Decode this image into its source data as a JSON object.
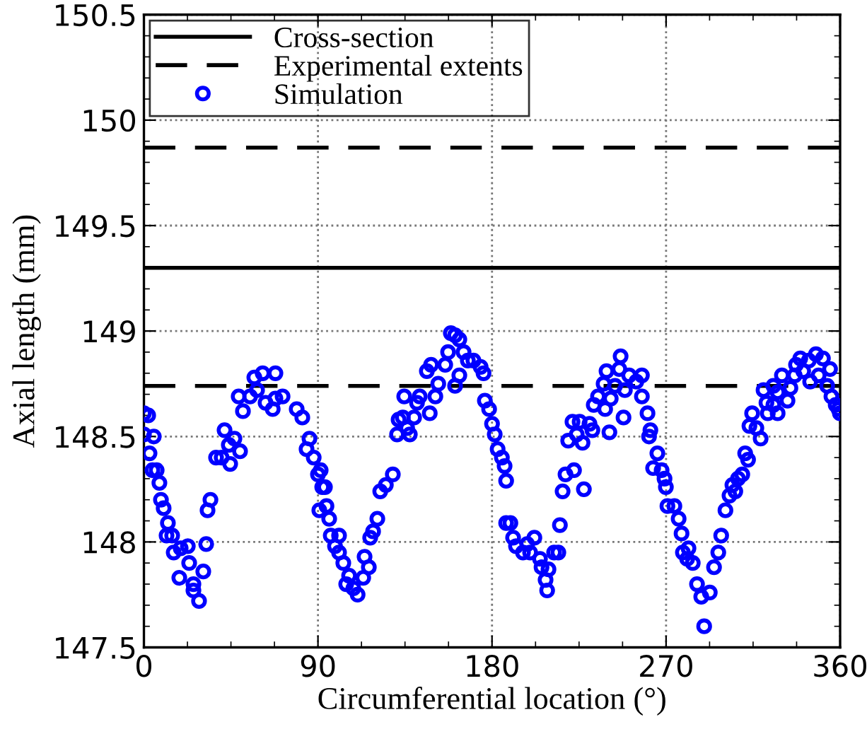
{
  "chart_data": {
    "type": "scatter",
    "xlabel": "Circumferential location (°)",
    "ylabel": "Axial length (mm)",
    "xlim": [
      0,
      360
    ],
    "xticks": [
      0,
      90,
      180,
      270,
      360
    ],
    "ylim": [
      147.5,
      150.5
    ],
    "yticks": [
      147.5,
      148,
      148.5,
      149,
      149.5,
      150,
      150.5
    ],
    "grid": true,
    "legend": "top left",
    "series": [
      {
        "name": "Cross-section",
        "type": "line",
        "line_style": "solid",
        "marker": "none",
        "color": "#000000",
        "x": [
          0,
          360
        ],
        "values": [
          149.3,
          149.3
        ]
      },
      {
        "name": "Experimental extents",
        "type": "line",
        "line_style": "dashed",
        "marker": "none",
        "color": "#000000",
        "x": [
          0,
          360
        ],
        "values": [
          149.87,
          149.87
        ]
      },
      {
        "type": "line",
        "line_style": "dashed",
        "marker": "none",
        "color": "#000000",
        "x": [
          0,
          360
        ],
        "values": [
          148.74,
          148.74
        ]
      },
      {
        "name": "Simulation",
        "marker": "circle",
        "color": "#0000ff",
        "x": [
          0,
          2.2,
          0,
          5.1,
          2.9,
          4.4,
          6.6,
          8.0,
          8.8,
          10.2,
          12.4,
          11.7,
          14.6,
          15.4,
          19.0,
          22.7,
          18.3,
          23.4,
          25.6,
          25.6,
          28.5,
          30.7,
          32.2,
          32.9,
          34.4,
          37.3,
          40.2,
          44.6,
          41.7,
          43.9,
          46.8,
          49.7,
          51.2,
          49.0,
          54.9,
          58.5,
          62.9,
          66.6,
          68.0,
          71.7,
          57.1,
          68.0,
          61.4,
          79.0,
          81.9,
          85.6,
          84.1,
          87.8,
          90.0,
          92.2,
          90.7,
          91.4,
          93.6,
          94.4,
          95.8,
          96.6,
          100.9,
          98.8,
          100.9,
          103.1,
          106.1,
          104.6,
          108.3,
          110.5,
          113.4,
          114.1,
          116.3,
          117.0,
          118.5,
          120.7,
          122.2,
          125.1,
          128.7,
          130.9,
          131.7,
          133.9,
          137.5,
          136.1,
          139.7,
          134.6,
          141.2,
          142.6,
          147.8,
          146.3,
          148.5,
          150.7,
          152.2,
          155.8,
          157.3,
          158.7,
          160.9,
          163.1,
          165.3,
          163.1,
          167.5,
          170.4,
          174.1,
          175.6,
          160.9,
          176.3,
          178.5,
          180.0,
          181.4,
          182.9,
          185.1,
          186.5,
          187.3,
          187.3,
          189.5,
          190.9,
          192.4,
          196.0,
          198.2,
          201.9,
          199.7,
          204.8,
          205.6,
          209.2,
          207.7,
          208.5,
          212.1,
          214.3,
          215.1,
          216.5,
          218.0,
          222.4,
          227.5,
          219.4,
          221.6,
          225.3,
          223.8,
          226.8,
          230.4,
          231.9,
          240.7,
          232.6,
          234.8,
          238.5,
          237.7,
          239.2,
          241.4,
          243.6,
          245.8,
          246.5,
          248.0,
          248.7,
          250.9,
          254.6,
          257.5,
          257.5,
          260.4,
          261.9,
          261.2,
          265.5,
          263.3,
          267.7,
          269.2,
          269.9,
          270.7,
          274.3,
          276.5,
          278.0,
          278.7,
          281.6,
          280.9,
          283.8,
          286.0,
          288.2,
          289.7,
          292.6,
          294.8,
          297.0,
          298.5,
          300.7,
          302.8,
          305.8,
          304.3,
          307.2,
          309.4,
          310.9,
          312.4,
          313.1,
          314.5,
          316.7,
          318.9,
          320.4,
          321.9,
          322.6,
          325.5,
          327.7,
          325.5,
          327.7,
          329.9,
          332.8,
          334.3,
          336.5,
          337.2,
          339.4,
          340.9,
          343.8,
          344.5,
          347.5,
          348.9,
          351.1,
          353.3,
          354.8,
          355.5,
          357.7,
          359.2,
          359.9
        ],
        "values": [
          148.61,
          148.6,
          148.51,
          148.5,
          148.42,
          148.34,
          148.34,
          148.28,
          148.2,
          148.16,
          148.09,
          148.03,
          148.03,
          147.95,
          147.97,
          147.98,
          147.83,
          147.9,
          147.8,
          147.77,
          147.72,
          147.86,
          147.99,
          148.15,
          148.2,
          148.4,
          148.4,
          148.37,
          148.53,
          148.46,
          148.49,
          148.43,
          148.62,
          148.69,
          148.69,
          148.72,
          148.66,
          148.63,
          148.68,
          148.69,
          148.78,
          148.8,
          148.8,
          148.63,
          148.59,
          148.49,
          148.44,
          148.4,
          148.32,
          148.26,
          148.15,
          148.34,
          148.26,
          148.17,
          148.11,
          148.03,
          148.03,
          147.98,
          147.95,
          147.9,
          147.84,
          147.8,
          147.78,
          147.75,
          147.83,
          147.93,
          147.88,
          148.02,
          148.05,
          148.11,
          148.24,
          148.27,
          148.32,
          148.51,
          148.58,
          148.59,
          148.51,
          148.54,
          148.59,
          148.69,
          148.66,
          148.69,
          148.61,
          148.81,
          148.84,
          148.69,
          148.75,
          148.84,
          148.9,
          148.99,
          148.98,
          148.96,
          148.9,
          148.79,
          148.86,
          148.86,
          148.83,
          148.8,
          148.74,
          148.67,
          148.63,
          148.56,
          148.51,
          148.44,
          148.4,
          148.36,
          148.29,
          148.09,
          148.09,
          148.02,
          147.98,
          147.95,
          147.99,
          148.02,
          147.95,
          147.92,
          147.88,
          147.87,
          147.82,
          147.77,
          147.95,
          147.95,
          148.08,
          148.24,
          148.32,
          148.34,
          148.25,
          148.48,
          148.57,
          148.57,
          148.51,
          148.47,
          148.56,
          148.53,
          148.52,
          148.65,
          148.69,
          148.63,
          148.75,
          148.81,
          148.68,
          148.74,
          148.82,
          148.88,
          148.59,
          148.72,
          148.79,
          148.76,
          148.79,
          148.69,
          148.61,
          148.53,
          148.5,
          148.42,
          148.35,
          148.34,
          148.3,
          148.26,
          148.17,
          148.17,
          148.11,
          148.04,
          147.95,
          147.97,
          147.92,
          147.9,
          147.8,
          147.74,
          147.6,
          147.76,
          147.88,
          147.95,
          148.03,
          148.15,
          148.22,
          148.24,
          148.27,
          148.3,
          148.32,
          148.42,
          148.39,
          148.55,
          148.61,
          148.54,
          148.49,
          148.72,
          148.66,
          148.61,
          148.65,
          148.61,
          148.74,
          148.71,
          148.79,
          148.67,
          148.73,
          148.79,
          148.84,
          148.87,
          148.81,
          148.86,
          148.76,
          148.89,
          148.79,
          148.87,
          148.74,
          148.82,
          148.69,
          148.65,
          148.63,
          148.61
        ]
      }
    ]
  }
}
